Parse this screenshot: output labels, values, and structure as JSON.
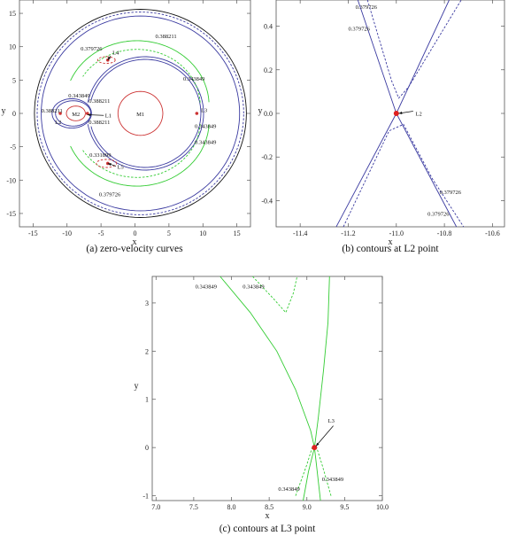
{
  "chart_data": [
    {
      "type": "line",
      "caption": "(a) zero-velocity curves",
      "xlabel": "x",
      "ylabel": "y",
      "xlim": [
        -17,
        17
      ],
      "ylim": [
        -17,
        17
      ],
      "xticks": [
        -15,
        -10,
        -5,
        0,
        5,
        10,
        15
      ],
      "yticks": [
        15,
        10,
        5,
        0,
        -5,
        -10,
        -15
      ],
      "points": [
        {
          "label": "M1",
          "x": 0.8,
          "y": 0
        },
        {
          "label": "M2",
          "x": -8.7,
          "y": 0
        },
        {
          "label": "L1",
          "x": -7.0,
          "y": 0
        },
        {
          "label": "L2",
          "x": -11.0,
          "y": 0
        },
        {
          "label": "L3",
          "x": 9.1,
          "y": 0
        },
        {
          "label": "L4",
          "x": -4.0,
          "y": 8.0
        },
        {
          "label": "L5",
          "x": -4.0,
          "y": -7.5
        }
      ],
      "annotations": [
        {
          "text": "0.388211",
          "x": 3.0,
          "y": 11.3
        },
        {
          "text": "0.379726",
          "x": -8.0,
          "y": 9.4
        },
        {
          "text": "0.343849",
          "x": 7.1,
          "y": 4.9
        },
        {
          "text": "0.343849",
          "x": -9.8,
          "y": 2.4
        },
        {
          "text": "0.388211",
          "x": -6.8,
          "y": 1.6
        },
        {
          "text": "0.388211",
          "x": -6.8,
          "y": -1.6
        },
        {
          "text": "0.388211",
          "x": -13.8,
          "y": 0.1
        },
        {
          "text": "0.343849",
          "x": 8.8,
          "y": -2.2
        },
        {
          "text": "0.343849",
          "x": 8.8,
          "y": -4.6
        },
        {
          "text": "0.331899",
          "x": -6.7,
          "y": -6.5
        },
        {
          "text": "0.379726",
          "x": -5.3,
          "y": -12.4
        }
      ]
    },
    {
      "type": "line",
      "caption": "(b) contours at L2 point",
      "xlabel": "x",
      "ylabel": "y",
      "xlim": [
        -11.5,
        -10.55
      ],
      "ylim": [
        -0.52,
        0.52
      ],
      "xticks": [
        -11.4,
        -11.2,
        -11.0,
        -10.8,
        -10.6
      ],
      "yticks": [
        0.4,
        0.2,
        0.0,
        -0.2,
        -0.4
      ],
      "points": [
        {
          "label": "L2",
          "x": -11.0,
          "y": 0.0
        }
      ],
      "annotations": [
        {
          "text": "0.379726",
          "x": -11.17,
          "y": 0.48
        },
        {
          "text": "0.379726",
          "x": -11.2,
          "y": 0.38
        },
        {
          "text": "0.379726",
          "x": -10.82,
          "y": -0.37
        },
        {
          "text": "0.379726",
          "x": -10.87,
          "y": -0.47
        }
      ]
    },
    {
      "type": "line",
      "caption": "(c) contours at L3 point",
      "xlabel": "x",
      "ylabel": "y",
      "xlim": [
        6.95,
        10.0
      ],
      "ylim": [
        -1.1,
        3.55
      ],
      "xticks": [
        7.0,
        7.5,
        8.0,
        8.5,
        9.0,
        9.5,
        10.0
      ],
      "yticks": [
        3,
        2,
        1,
        0,
        -1
      ],
      "points": [
        {
          "label": "L3",
          "x": 9.1,
          "y": 0.0
        }
      ],
      "annotations": [
        {
          "text": "0.343849",
          "x": 7.52,
          "y": 3.3
        },
        {
          "text": "0.343849",
          "x": 8.15,
          "y": 3.3
        },
        {
          "text": "0.343849",
          "x": 8.62,
          "y": -0.9
        },
        {
          "text": "0.343849",
          "x": 9.2,
          "y": -0.7
        }
      ]
    }
  ]
}
